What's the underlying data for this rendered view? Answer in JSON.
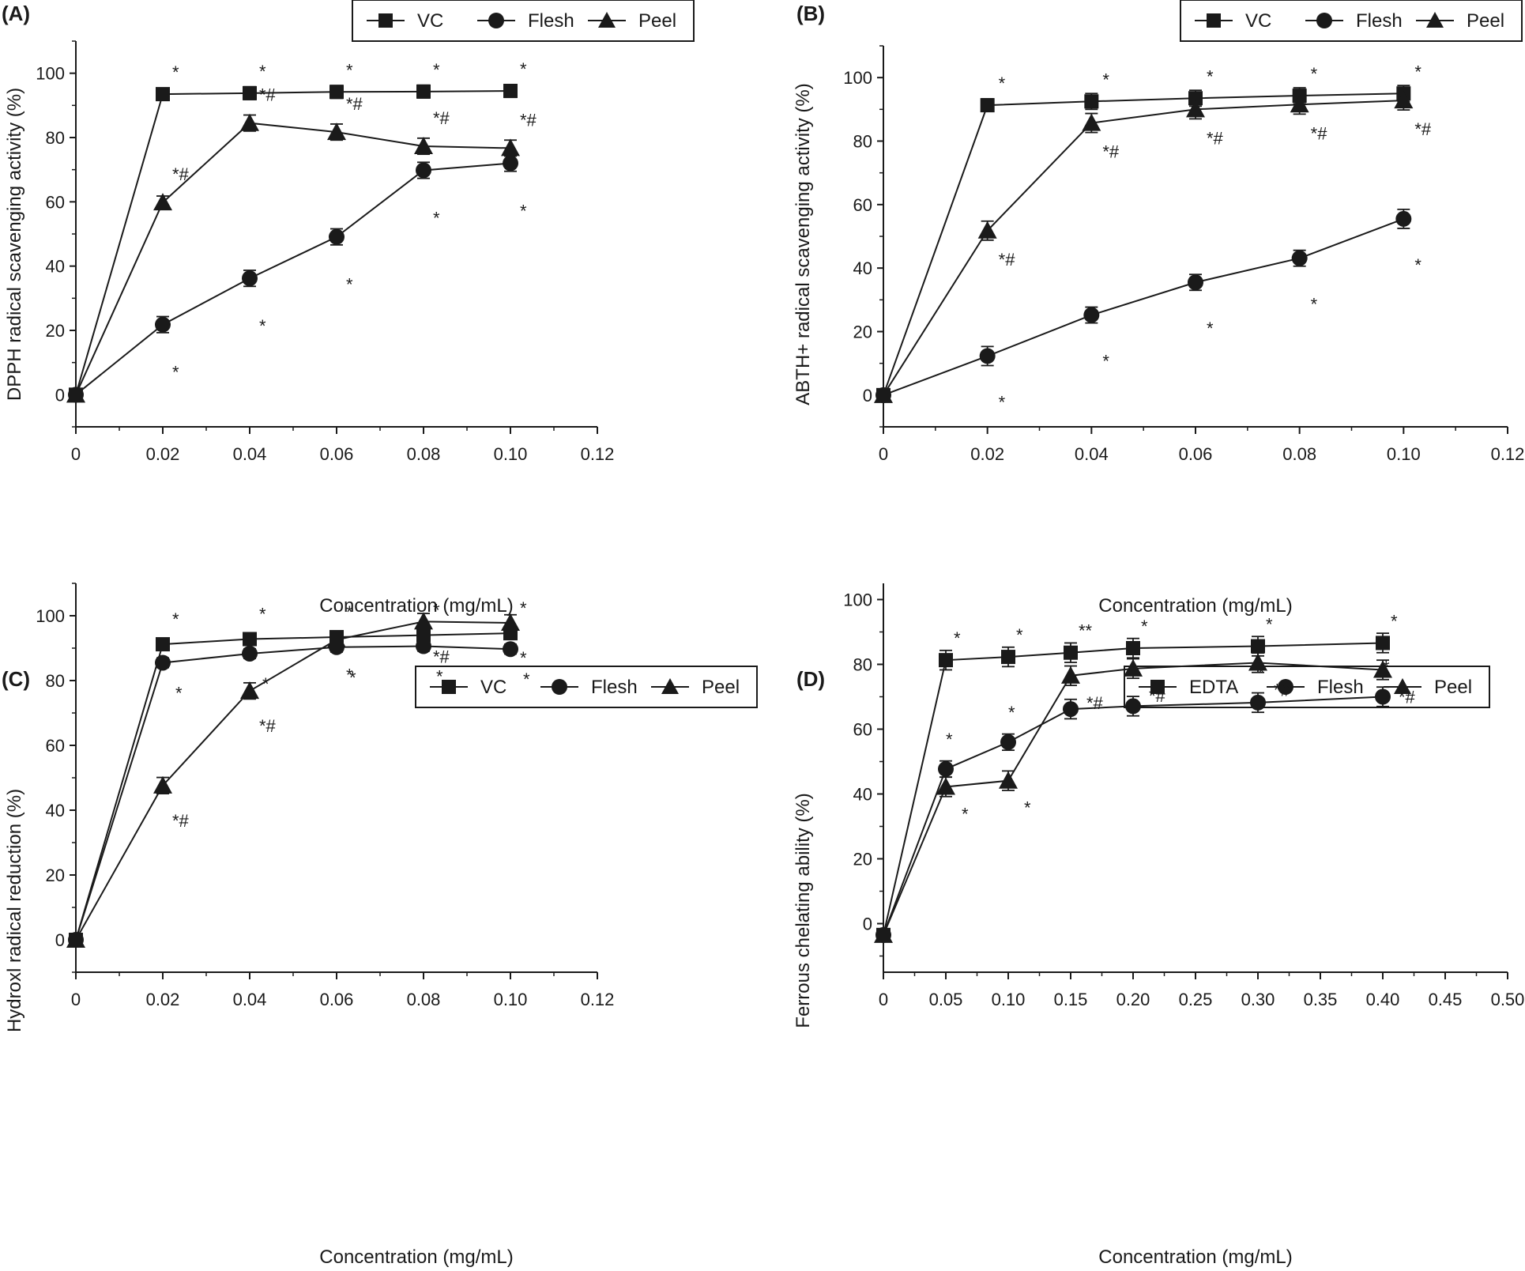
{
  "figure": {
    "panels": [
      {
        "label": "(A)",
        "legend": [
          "VC",
          "Flesh",
          "Peel"
        ]
      },
      {
        "label": "(B)",
        "legend": [
          "VC",
          "Flesh",
          "Peel"
        ]
      },
      {
        "label": "(C)",
        "legend": [
          "VC",
          "Flesh",
          "Peel"
        ]
      },
      {
        "label": "(D)",
        "legend": [
          "EDTA",
          "Flesh",
          "Peel"
        ]
      }
    ]
  },
  "chart_data": [
    {
      "type": "line",
      "panel": "(A)",
      "xlabel": "Concentration (mg/mL)",
      "ylabel": "DPPH radical scavenging activity (%)",
      "xlim": [
        0,
        0.12
      ],
      "ylim": [
        -10,
        110
      ],
      "xticks": [
        0,
        0.02,
        0.04,
        0.06,
        0.08,
        0.1,
        0.12
      ],
      "xtick_labels": [
        "0",
        "0.02",
        "0.04",
        "0.06",
        "0.08",
        "0.10",
        "0.12"
      ],
      "yticks": [
        0,
        20,
        40,
        60,
        80,
        100
      ],
      "x": [
        0,
        0.02,
        0.04,
        0.06,
        0.08,
        0.1
      ],
      "series": [
        {
          "name": "VC",
          "marker": "square",
          "values": [
            0,
            93.5,
            93.8,
            94.2,
            94.3,
            94.5
          ],
          "errors": [
            0,
            1.5,
            2.0,
            2.0,
            2.0,
            2.0
          ],
          "annotations": [
            "",
            "*",
            "*",
            "*",
            "*",
            "*"
          ]
        },
        {
          "name": "Flesh",
          "marker": "circle",
          "values": [
            0,
            21.8,
            36.2,
            49.1,
            69.8,
            72.0
          ],
          "errors": [
            0,
            2.5,
            2.5,
            2.5,
            2.5,
            2.5
          ],
          "annotations": [
            "",
            "*",
            "*",
            "*",
            "*",
            "*"
          ]
        },
        {
          "name": "Peel",
          "marker": "triangle",
          "values": [
            0,
            59.8,
            84.5,
            81.7,
            77.3,
            76.7
          ],
          "errors": [
            0,
            2.0,
            2.5,
            2.5,
            2.5,
            2.5
          ],
          "annotations": [
            "",
            "*#",
            "*#",
            "*#",
            "*#",
            "*#"
          ]
        }
      ]
    },
    {
      "type": "line",
      "panel": "(B)",
      "xlabel": "Concentration (mg/mL)",
      "ylabel": "ABTH+ radical scavenging activity (%)",
      "xlim": [
        0,
        0.12
      ],
      "ylim": [
        -10,
        110
      ],
      "xticks": [
        0,
        0.02,
        0.04,
        0.06,
        0.08,
        0.1,
        0.12
      ],
      "xtick_labels": [
        "0",
        "0.02",
        "0.04",
        "0.06",
        "0.08",
        "0.10",
        "0.12"
      ],
      "yticks": [
        0,
        20,
        40,
        60,
        80,
        100
      ],
      "x": [
        0,
        0.02,
        0.04,
        0.06,
        0.08,
        0.1
      ],
      "series": [
        {
          "name": "VC",
          "marker": "square",
          "values": [
            0,
            91.3,
            92.5,
            93.5,
            94.3,
            95.0
          ],
          "errors": [
            0,
            2.0,
            2.5,
            2.5,
            2.5,
            2.5
          ],
          "annotations": [
            "",
            "*",
            "*",
            "*",
            "*",
            "*"
          ]
        },
        {
          "name": "Flesh",
          "marker": "circle",
          "values": [
            0,
            12.3,
            25.2,
            35.5,
            43.1,
            55.5
          ],
          "errors": [
            0,
            3.0,
            2.5,
            2.5,
            2.5,
            3.0
          ],
          "annotations": [
            "",
            "*",
            "*",
            "*",
            "*",
            "*"
          ]
        },
        {
          "name": "Peel",
          "marker": "triangle",
          "values": [
            0,
            51.8,
            85.7,
            90.0,
            91.5,
            92.8
          ],
          "errors": [
            0,
            3.0,
            3.0,
            3.0,
            3.0,
            3.0
          ],
          "annotations": [
            "",
            "*#",
            "*#",
            "*#",
            "*#",
            "*#"
          ]
        }
      ]
    },
    {
      "type": "line",
      "panel": "(C)",
      "xlabel": "Concentration (mg/mL)",
      "ylabel": "Hydroxl radical reduction (%)",
      "xlim": [
        0,
        0.12
      ],
      "ylim": [
        -10,
        110
      ],
      "xticks": [
        0,
        0.02,
        0.04,
        0.06,
        0.08,
        0.1,
        0.12
      ],
      "xtick_labels": [
        "0",
        "0.02",
        "0.04",
        "0.06",
        "0.08",
        "0.10",
        "0.12"
      ],
      "yticks": [
        0,
        20,
        40,
        60,
        80,
        100
      ],
      "x": [
        0,
        0.02,
        0.04,
        0.06,
        0.08,
        0.1
      ],
      "series": [
        {
          "name": "VC",
          "marker": "square",
          "values": [
            0,
            91.2,
            92.8,
            93.4,
            94.0,
            94.6
          ],
          "errors": [
            0,
            1.5,
            1.5,
            1.5,
            1.5,
            1.5
          ],
          "annotations": [
            "",
            "*",
            "*",
            "*",
            "*",
            "*"
          ]
        },
        {
          "name": "Flesh",
          "marker": "circle",
          "values": [
            0,
            85.5,
            88.3,
            90.3,
            90.6,
            89.7
          ],
          "errors": [
            0,
            1.5,
            1.5,
            1.5,
            1.5,
            1.5
          ],
          "annotations": [
            "",
            "*",
            "*",
            "*",
            "*",
            "*"
          ]
        },
        {
          "name": "Peel",
          "marker": "triangle",
          "values": [
            0,
            47.6,
            76.8,
            92.6,
            98.2,
            97.8
          ],
          "errors": [
            0,
            2.5,
            2.5,
            2.5,
            2.5,
            2.5
          ],
          "annotations": [
            "",
            "*#",
            "*#",
            "*",
            "*#",
            "*"
          ]
        }
      ]
    },
    {
      "type": "line",
      "panel": "(D)",
      "xlabel": "Concentration (mg/mL)",
      "ylabel": "Ferrous chelating ability (%)",
      "xlim": [
        0,
        0.5
      ],
      "ylim": [
        -15,
        105
      ],
      "xticks": [
        0,
        0.05,
        0.1,
        0.15,
        0.2,
        0.25,
        0.3,
        0.35,
        0.4,
        0.45,
        0.5
      ],
      "xtick_labels": [
        "0",
        "0.05",
        "0.10",
        "0.15",
        "0.20",
        "0.25",
        "0.30",
        "0.35",
        "0.40",
        "0.45",
        "0.50"
      ],
      "yticks": [
        0,
        20,
        40,
        60,
        80,
        100
      ],
      "x": [
        0,
        0.05,
        0.1,
        0.15,
        0.2,
        0.3,
        0.4
      ],
      "series": [
        {
          "name": "EDTA",
          "marker": "square",
          "values": [
            -3.5,
            81.3,
            82.3,
            83.6,
            85.0,
            85.6,
            86.6
          ],
          "errors": [
            0,
            3.0,
            3.0,
            3.0,
            3.0,
            3.0,
            3.0
          ],
          "annotations": [
            "",
            "*",
            "*",
            "**",
            "*",
            "*",
            "*"
          ]
        },
        {
          "name": "Flesh",
          "marker": "circle",
          "values": [
            -3.5,
            47.7,
            56.0,
            66.2,
            67.1,
            68.2,
            70.0
          ],
          "errors": [
            0,
            2.5,
            2.5,
            3.0,
            3.0,
            3.0,
            3.0
          ],
          "annotations": [
            "",
            "*",
            "*",
            "*",
            "*",
            "*",
            "*"
          ]
        },
        {
          "name": "Peel",
          "marker": "triangle",
          "values": [
            -3.5,
            42.2,
            44.1,
            76.5,
            78.7,
            80.5,
            78.3
          ],
          "errors": [
            0,
            3.0,
            3.0,
            3.0,
            3.0,
            3.0,
            3.0
          ],
          "annotations": [
            "",
            "*",
            "*",
            "*#",
            "*#",
            "*#",
            "*#"
          ]
        }
      ]
    }
  ]
}
